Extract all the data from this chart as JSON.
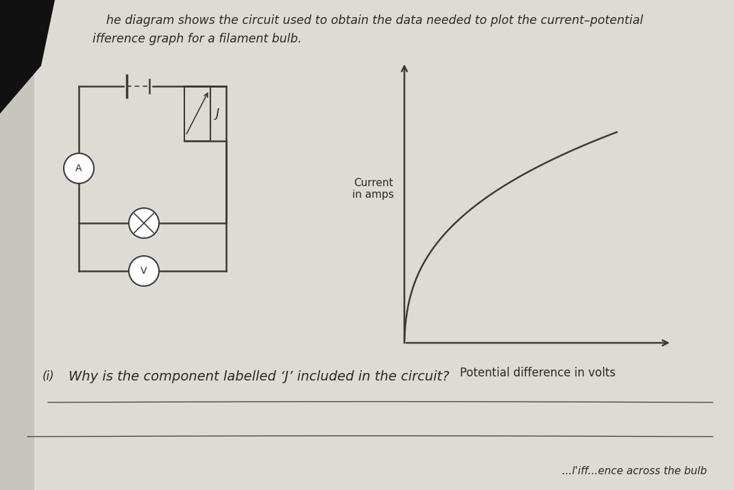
{
  "bg_color": "#c8c4be",
  "page_color": "#dedad4",
  "title_line1": "he diagram shows the circuit used to obtain the data needed to plot the current–potential",
  "title_line2": "ifference graph for a filament bulb.",
  "title_fontsize": 12.5,
  "ammeter_label": "A",
  "voltmeter_label": "V",
  "rheostat_label": "J",
  "graph_xlabel": "Potential difference in volts",
  "graph_ylabel": "Current\nin amps",
  "graph_xlabel_fontsize": 12,
  "graph_ylabel_fontsize": 11,
  "question_number": "(i)",
  "question_text": "Why is the component labelled ‘J’ included in the circuit?",
  "question_fontsize": 14,
  "bottom_text": "...l’iff...ence across the bulb",
  "line_color": "#3a3a3a",
  "text_color": "#2a2a2a",
  "dark_corner_color": "#1a1a1a"
}
